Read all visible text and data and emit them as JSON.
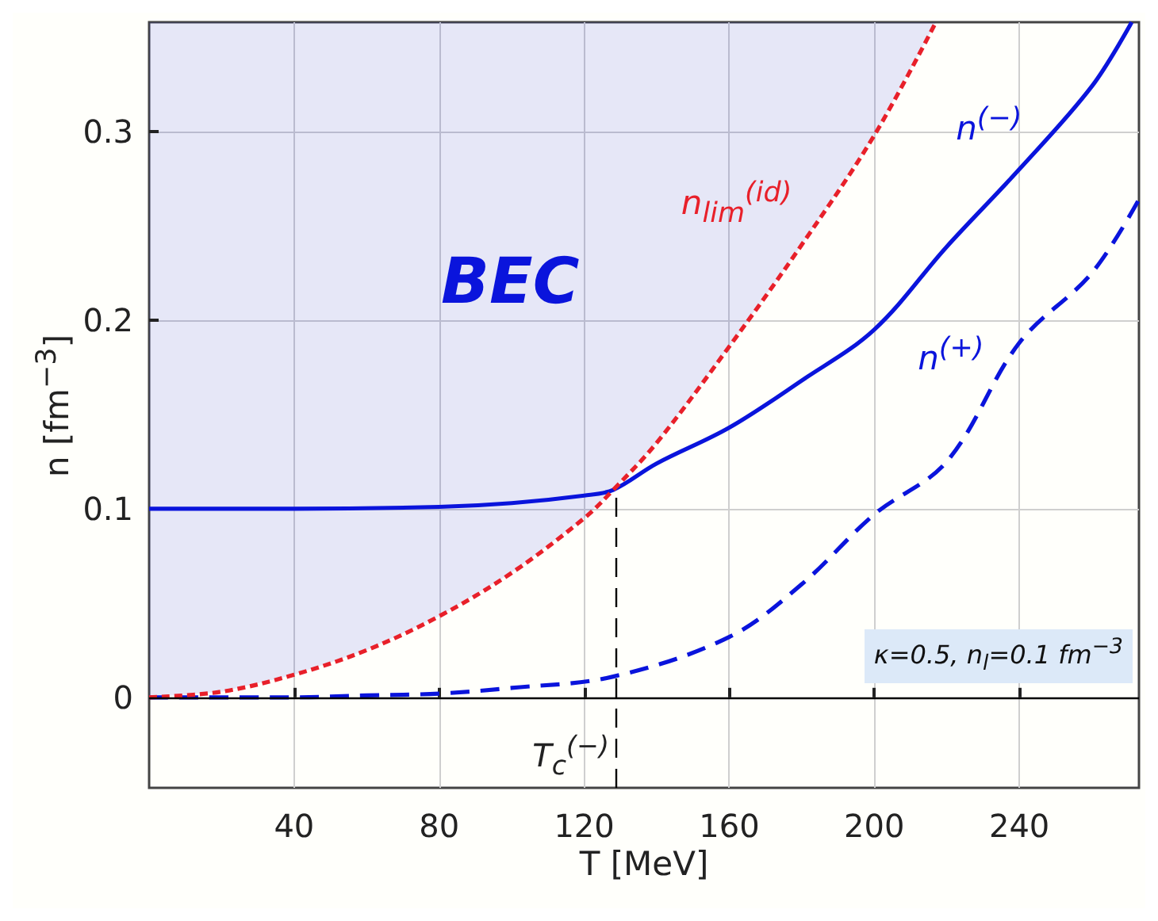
{
  "chart_data": {
    "type": "line",
    "xlabel": "T [MeV]",
    "ylabel": "n [fm$^{−3}$]",
    "xlim": [
      0,
      273
    ],
    "ylim": [
      -0.048,
      0.358
    ],
    "xticks": [
      40,
      80,
      120,
      160,
      200,
      240
    ],
    "yticks": [
      0,
      0.1,
      0.2,
      0.3
    ],
    "grid": true,
    "marker": "none",
    "series": [
      {
        "name": "n$^{(−)}$",
        "color": "#0a14dc",
        "line_style": "solid",
        "x": [
          0,
          40,
          80,
          100,
          120,
          128,
          140,
          160,
          180,
          200,
          220,
          240,
          260,
          271
        ],
        "values": [
          0.1,
          0.1,
          0.101,
          0.103,
          0.107,
          0.11,
          0.124,
          0.143,
          0.168,
          0.195,
          0.239,
          0.28,
          0.324,
          0.358
        ]
      },
      {
        "name": "n$^{(+)}$",
        "color": "#0a14dc",
        "line_style": "dashed",
        "x": [
          0,
          40,
          60,
          80,
          100,
          128,
          160,
          180,
          200,
          220,
          240,
          260,
          273
        ],
        "values": [
          0,
          0,
          0.001,
          0.002,
          0.005,
          0.011,
          0.032,
          0.06,
          0.097,
          0.125,
          0.188,
          0.225,
          0.264
        ]
      },
      {
        "name": "n$_{lim}$$^{(id)}$",
        "color": "#e8202a",
        "line_style": "dotted",
        "x": [
          0,
          20,
          40,
          60,
          80,
          100,
          120,
          128,
          140,
          160,
          180,
          200,
          217
        ],
        "values": [
          0,
          0.003,
          0.012,
          0.025,
          0.043,
          0.066,
          0.095,
          0.11,
          0.135,
          0.186,
          0.24,
          0.298,
          0.358
        ],
        "lower": [
          0,
          0.003,
          0.012,
          0.025,
          0.043,
          0.066,
          0.095,
          0.11,
          0.135,
          0.186,
          0.24,
          0.298,
          0.358
        ],
        "upper": [
          0.358,
          0.358,
          0.358,
          0.358,
          0.358,
          0.358,
          0.358,
          0.358,
          0.358,
          0.358,
          0.358,
          0.358,
          0.358
        ]
      }
    ],
    "ref_lines": [
      {
        "axis": "y",
        "value": 0,
        "color": "#000000",
        "line_style": "solid"
      },
      {
        "axis": "x",
        "value": 128.6,
        "label": "T$_{c}$$^{(−)}$",
        "color": "#000000",
        "line_style": "dashed"
      }
    ],
    "annotations": [
      "BEC",
      "κ=0.5, n$_{l}$=0.1 fm$^{−3}$"
    ]
  }
}
